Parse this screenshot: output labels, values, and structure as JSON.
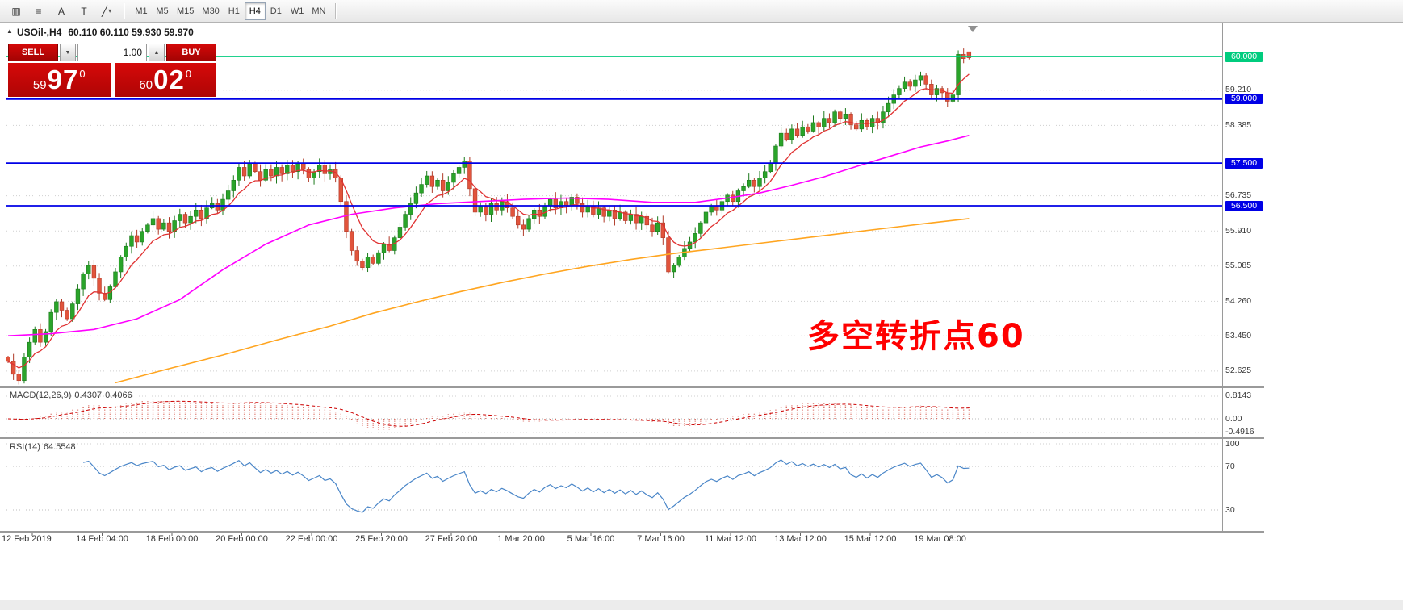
{
  "toolbar": {
    "icons": [
      {
        "name": "chart-style-button",
        "glyph": "▥",
        "dropdown": false
      },
      {
        "name": "indicators-button",
        "glyph": "≡",
        "dropdown": false
      },
      {
        "name": "cursor-a-button",
        "glyph": "A",
        "dropdown": false
      },
      {
        "name": "text-tool-button",
        "glyph": "T",
        "dropdown": false
      },
      {
        "name": "draw-line-button",
        "glyph": "╱",
        "dropdown": true
      }
    ],
    "timeframes": [
      "M1",
      "M5",
      "M15",
      "M30",
      "H1",
      "H4",
      "D1",
      "W1",
      "MN"
    ],
    "active_timeframe": "H4"
  },
  "chart": {
    "title": "USOil-,H4",
    "ohlc_text": "60.110 60.110 59.930 59.970",
    "annotation": "多空转折点60"
  },
  "one_click": {
    "sell_label": "SELL",
    "buy_label": "BUY",
    "volume": "1.00",
    "sell_price": {
      "prefix": "59",
      "big": "97",
      "sup": "0"
    },
    "buy_price": {
      "prefix": "60",
      "big": "02",
      "sup": "0"
    }
  },
  "price_axis": {
    "ticks": [
      "59.210",
      "58.385",
      "56.735",
      "55.910",
      "55.085",
      "54.260",
      "53.450",
      "52.625"
    ],
    "levels": [
      {
        "value": "60.000",
        "price": 60.0,
        "color": "#00cc7e"
      },
      {
        "value": "59.000",
        "price": 59.0,
        "color": "#0000e6"
      },
      {
        "value": "57.500",
        "price": 57.5,
        "color": "#0000e6"
      },
      {
        "value": "56.500",
        "price": 56.5,
        "color": "#0000e6"
      }
    ]
  },
  "time_axis": {
    "labels": [
      "12 Feb 2019",
      "14 Feb 04:00",
      "18 Feb 00:00",
      "20 Feb 00:00",
      "22 Feb 00:00",
      "25 Feb 20:00",
      "27 Feb 20:00",
      "1 Mar 20:00",
      "5 Mar 16:00",
      "7 Mar 16:00",
      "11 Mar 12:00",
      "13 Mar 12:00",
      "15 Mar 12:00",
      "19 Mar 08:00"
    ]
  },
  "macd": {
    "label": "MACD(12,26,9)",
    "value_main": "0.4307",
    "value_signal": "0.4066",
    "axis": [
      "0.8143",
      "0.00",
      "-0.4916"
    ],
    "params": {
      "fast": 12,
      "slow": 26,
      "signal": 9
    }
  },
  "rsi": {
    "label": "RSI(14)",
    "value": "64.5548",
    "axis": [
      "100",
      "70",
      "30"
    ],
    "period": 14
  },
  "chart_data": {
    "type": "candlestick",
    "symbol": "USOil-",
    "timeframe": "H4",
    "ylim_visible": [
      52.3,
      60.75
    ],
    "closes": [
      52.85,
      52.55,
      52.4,
      52.95,
      53.3,
      53.6,
      53.3,
      53.55,
      54.0,
      54.25,
      54.05,
      53.85,
      54.2,
      54.55,
      54.9,
      55.1,
      54.8,
      54.45,
      54.3,
      54.6,
      54.95,
      55.3,
      55.55,
      55.8,
      55.65,
      55.9,
      56.05,
      56.2,
      55.95,
      56.1,
      55.9,
      56.15,
      56.3,
      56.1,
      56.25,
      56.4,
      56.2,
      56.45,
      56.55,
      56.4,
      56.65,
      56.85,
      57.1,
      57.4,
      57.2,
      57.5,
      57.3,
      57.1,
      57.35,
      57.2,
      57.4,
      57.25,
      57.45,
      57.3,
      57.5,
      57.35,
      57.15,
      57.3,
      57.45,
      57.25,
      57.35,
      57.15,
      56.6,
      55.9,
      55.45,
      55.2,
      55.05,
      55.3,
      55.15,
      55.4,
      55.6,
      55.45,
      55.75,
      56.0,
      56.3,
      56.55,
      56.8,
      57.0,
      57.2,
      56.95,
      57.1,
      56.85,
      57.05,
      57.25,
      57.4,
      57.55,
      56.9,
      56.35,
      56.5,
      56.3,
      56.55,
      56.4,
      56.6,
      56.45,
      56.25,
      56.05,
      55.95,
      56.2,
      56.4,
      56.25,
      56.5,
      56.65,
      56.45,
      56.6,
      56.5,
      56.7,
      56.55,
      56.35,
      56.5,
      56.3,
      56.45,
      56.25,
      56.4,
      56.2,
      56.35,
      56.15,
      56.3,
      56.1,
      56.25,
      56.05,
      55.9,
      56.1,
      55.75,
      54.95,
      55.1,
      55.3,
      55.5,
      55.65,
      55.85,
      56.1,
      56.35,
      56.5,
      56.4,
      56.6,
      56.75,
      56.6,
      56.85,
      56.95,
      57.1,
      56.95,
      57.15,
      57.3,
      57.5,
      57.9,
      58.2,
      58.05,
      58.3,
      58.15,
      58.35,
      58.25,
      58.45,
      58.35,
      58.55,
      58.45,
      58.7,
      58.55,
      58.65,
      58.4,
      58.3,
      58.5,
      58.35,
      58.55,
      58.45,
      58.7,
      58.9,
      59.1,
      59.25,
      59.4,
      59.3,
      59.45,
      59.55,
      59.35,
      59.1,
      59.25,
      59.15,
      58.95,
      59.1,
      60.05,
      59.95,
      59.97
    ],
    "current_ohlc": [
      60.11,
      60.11,
      59.93,
      59.97
    ],
    "ma_fast_period": 8,
    "ma_magenta_anchors": [
      [
        0,
        53.45
      ],
      [
        8,
        53.5
      ],
      [
        16,
        53.6
      ],
      [
        24,
        53.85
      ],
      [
        32,
        54.3
      ],
      [
        40,
        55.0
      ],
      [
        48,
        55.6
      ],
      [
        56,
        56.05
      ],
      [
        64,
        56.3
      ],
      [
        72,
        56.45
      ],
      [
        80,
        56.55
      ],
      [
        88,
        56.6
      ],
      [
        96,
        56.65
      ],
      [
        104,
        56.68
      ],
      [
        112,
        56.65
      ],
      [
        120,
        56.58
      ],
      [
        128,
        56.58
      ],
      [
        134,
        56.68
      ],
      [
        140,
        56.8
      ],
      [
        146,
        56.98
      ],
      [
        152,
        57.18
      ],
      [
        158,
        57.42
      ],
      [
        164,
        57.65
      ],
      [
        170,
        57.88
      ],
      [
        175,
        58.02
      ],
      [
        179,
        58.15
      ]
    ],
    "ma_orange_anchors": [
      [
        20,
        52.35
      ],
      [
        30,
        52.68
      ],
      [
        40,
        53.0
      ],
      [
        50,
        53.35
      ],
      [
        60,
        53.68
      ],
      [
        68,
        53.98
      ],
      [
        76,
        54.24
      ],
      [
        84,
        54.48
      ],
      [
        92,
        54.7
      ],
      [
        100,
        54.9
      ],
      [
        108,
        55.08
      ],
      [
        116,
        55.24
      ],
      [
        124,
        55.38
      ],
      [
        132,
        55.5
      ],
      [
        140,
        55.62
      ],
      [
        148,
        55.74
      ],
      [
        156,
        55.86
      ],
      [
        164,
        55.98
      ],
      [
        172,
        56.1
      ],
      [
        179,
        56.2
      ]
    ]
  },
  "colors": {
    "candle_up": "#2aa42a",
    "candle_up_stroke": "#1d7a1d",
    "candle_down": "#e1543c",
    "candle_down_stroke": "#b03a28",
    "ma_fast": "#e03232",
    "ma_mid": "#ff00ff",
    "ma_slow": "#ffa520",
    "level_green": "#00cc7e",
    "level_blue": "#0000e6",
    "macd_hist": "#d96a5f",
    "macd_signal": "#cc0000",
    "rsi_line": "#4a86c8",
    "grid": "#cfcfcf",
    "annotation": "#ff0000"
  }
}
